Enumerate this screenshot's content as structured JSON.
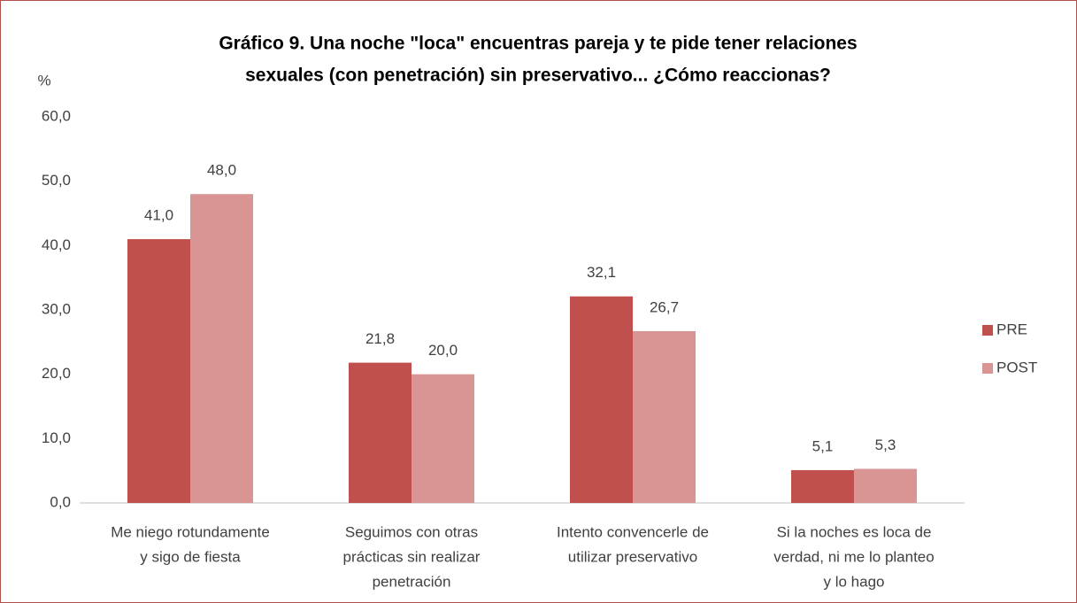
{
  "chart_data": {
    "type": "bar",
    "title": [
      "Gráfico 9. Una noche \"loca\" encuentras pareja y te pide tener relaciones",
      "sexuales (con penetración) sin preservativo... ¿Cómo reaccionas?"
    ],
    "y_label": "%",
    "categories": [
      [
        "Me niego rotundamente",
        "y sigo de fiesta"
      ],
      [
        "Seguimos con otras",
        "prácticas sin realizar",
        "penetración"
      ],
      [
        "Intento convencerle de",
        "utilizar preservativo"
      ],
      [
        "Si la noches es loca de",
        "verdad, ni me lo planteo",
        "y lo hago"
      ]
    ],
    "series": [
      {
        "name": "PRE",
        "color": "#c0504d",
        "values": [
          41.0,
          21.8,
          32.1,
          5.1
        ],
        "value_labels": [
          "41,0",
          "21,8",
          "32,1",
          "5,1"
        ]
      },
      {
        "name": "POST",
        "color": "#d99594",
        "values": [
          48.0,
          20.0,
          26.7,
          5.3
        ],
        "value_labels": [
          "48,0",
          "20,0",
          "26,7",
          "5,3"
        ]
      }
    ],
    "ylim": [
      0,
      60
    ],
    "yticks": [
      {
        "value": 0,
        "label": "0,0"
      },
      {
        "value": 10,
        "label": "10,0"
      },
      {
        "value": 20,
        "label": "20,0"
      },
      {
        "value": 30,
        "label": "30,0"
      },
      {
        "value": 40,
        "label": "40,0"
      },
      {
        "value": 50,
        "label": "50,0"
      },
      {
        "value": 60,
        "label": "60,0"
      }
    ],
    "grid": false,
    "legend": "right"
  }
}
